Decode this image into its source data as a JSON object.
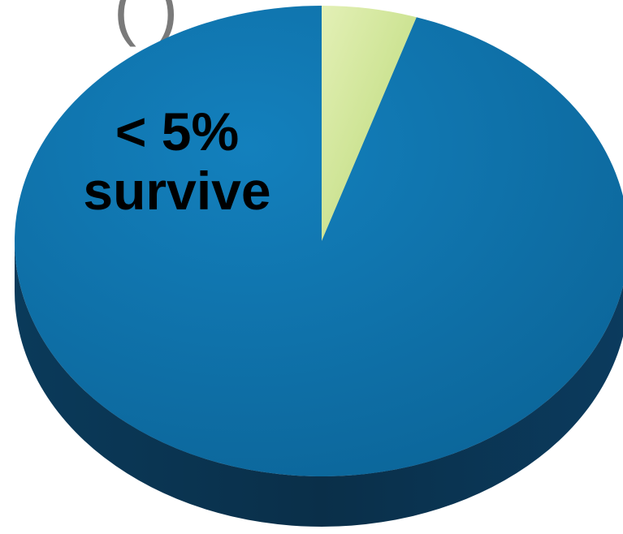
{
  "chart_data": {
    "type": "pie",
    "title_fragment": "(      )",
    "slices": [
      {
        "label": "< 5%",
        "sublabel": "survive",
        "value": 5,
        "color": "#d4e7a0"
      },
      {
        "label": "",
        "value": 95,
        "color": "#0a70aa"
      }
    ],
    "style": "3d",
    "colors": {
      "accent_slice_edge": "#b9d874",
      "main_top_light": "#1380bd",
      "main_top_dark": "#0b6396",
      "main_side": "#0a2f49",
      "shadow": "#9a9a9a"
    }
  }
}
